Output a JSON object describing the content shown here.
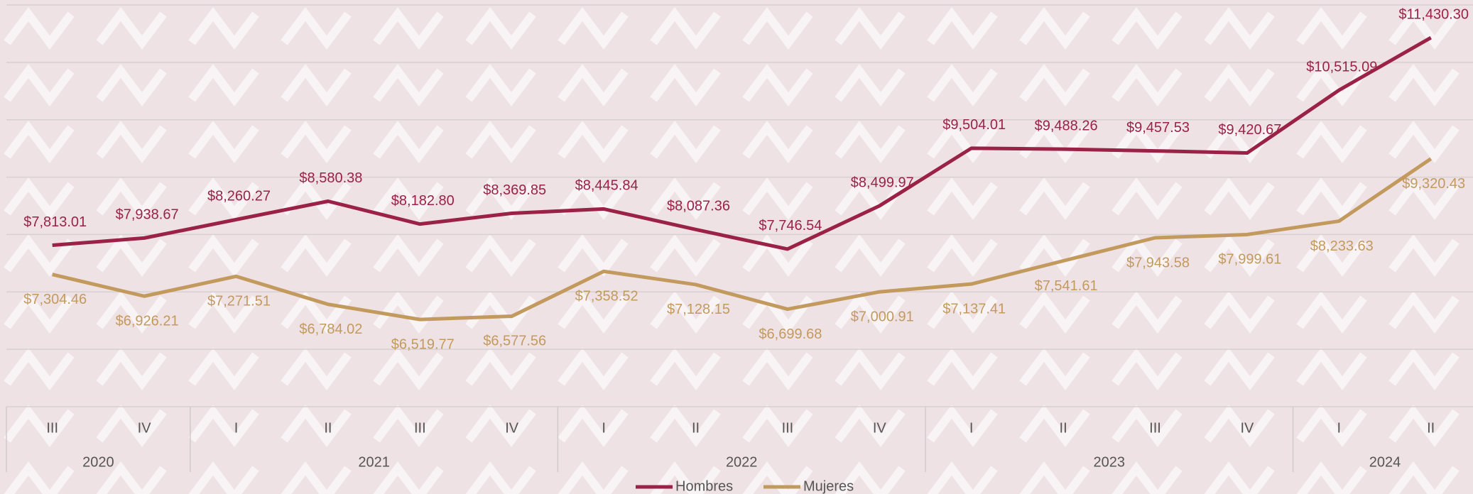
{
  "chart_data": {
    "type": "line",
    "categories": [
      "III",
      "IV",
      "I",
      "II",
      "III",
      "IV",
      "I",
      "II",
      "III",
      "IV",
      "I",
      "II",
      "III",
      "IV",
      "I",
      "II"
    ],
    "x_groups": [
      {
        "label": "2020",
        "count": 2
      },
      {
        "label": "2021",
        "count": 4
      },
      {
        "label": "2022",
        "count": 4
      },
      {
        "label": "2023",
        "count": 4
      },
      {
        "label": "2024",
        "count": 2
      }
    ],
    "series": [
      {
        "name": "Hombres",
        "color": "#9b2247",
        "values": [
          7813.01,
          7938.67,
          8260.27,
          8580.38,
          8182.8,
          8369.85,
          8445.84,
          8087.36,
          7746.54,
          8499.97,
          9504.01,
          9488.26,
          9457.53,
          9420.67,
          10515.09,
          11430.3
        ],
        "value_labels": [
          "$7,813.01",
          "$7,938.67",
          "$8,260.27",
          "$8,580.38",
          "$8,182.80",
          "$8,369.85",
          "$8,445.84",
          "$8,087.36",
          "$7,746.54",
          "$8,499.97",
          "$9,504.01",
          "$9,488.26",
          "$9,457.53",
          "$9,420.67",
          "$10,515.09",
          "$11,430.30"
        ]
      },
      {
        "name": "Mujeres",
        "color": "#c39a5e",
        "values": [
          7304.46,
          6926.21,
          7271.51,
          6784.02,
          6519.77,
          6577.56,
          7358.52,
          7128.15,
          6699.68,
          7000.91,
          7137.41,
          7541.61,
          7943.58,
          7999.61,
          8233.63,
          9320.43
        ],
        "value_labels": [
          "$7,304.46",
          "$6,926.21",
          "$7,271.51",
          "$6,784.02",
          "$6,519.77",
          "$6,577.56",
          "$7,358.52",
          "$7,128.15",
          "$6,699.68",
          "$7,000.91",
          "$7,137.41",
          "$7,541.61",
          "$7,943.58",
          "$7,999.61",
          "$8,233.63",
          "$9,320.43"
        ]
      }
    ],
    "ylim": [
      5000,
      12000
    ],
    "yticks": [
      5000,
      6000,
      7000,
      8000,
      9000,
      10000,
      11000,
      12000
    ],
    "grid": true
  }
}
